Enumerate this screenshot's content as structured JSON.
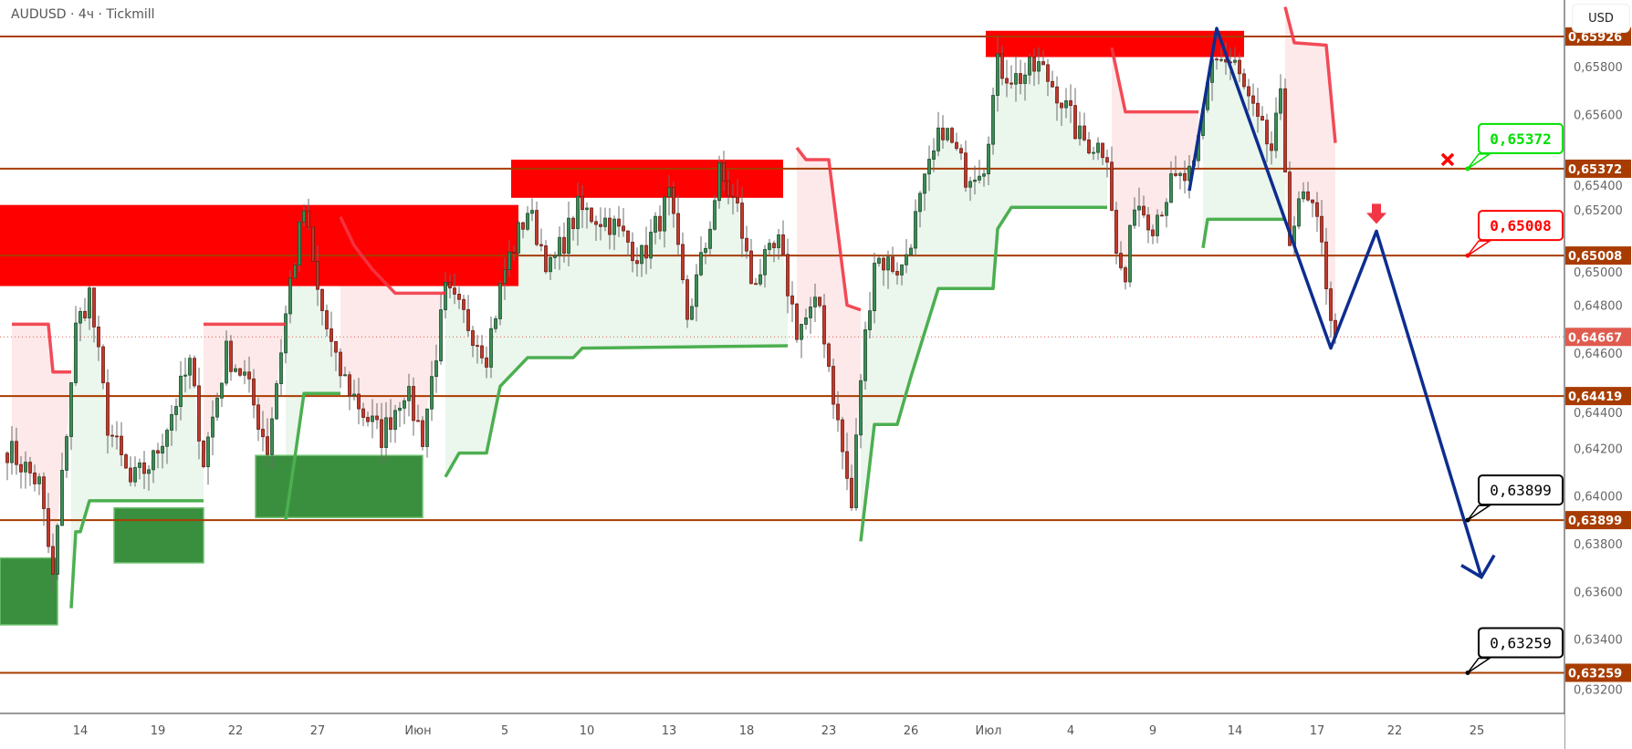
{
  "header": {
    "title": "AUDUSD · 4ч · Tickmill",
    "currency": "USD"
  },
  "chart_data": {
    "type": "candlestick",
    "symbol": "AUDUSD",
    "timeframe": "4ч",
    "broker": "Tickmill",
    "ylim": [
      0.6316,
      0.66
    ],
    "y_ticks": [
      "0,65800",
      "0,65600",
      "0,65400",
      "0,65200",
      "0,65000",
      "0,64800",
      "0,64600",
      "0,64400",
      "0,64200",
      "0,64000",
      "0,63800",
      "0,63600",
      "0,63400",
      "0,63200"
    ],
    "y_tick_values": [
      0.658,
      0.656,
      0.654,
      0.652,
      0.65,
      0.648,
      0.646,
      0.644,
      0.642,
      0.64,
      0.638,
      0.636,
      0.634,
      0.632
    ],
    "x_ticks": [
      {
        "label": "14",
        "bar": 16
      },
      {
        "label": "19",
        "bar": 33
      },
      {
        "label": "22",
        "bar": 50
      },
      {
        "label": "27",
        "bar": 68
      },
      {
        "label": "Июн",
        "bar": 90
      },
      {
        "label": "5",
        "bar": 109
      },
      {
        "label": "10",
        "bar": 127
      },
      {
        "label": "13",
        "bar": 145
      },
      {
        "label": "18",
        "bar": 162
      },
      {
        "label": "23",
        "bar": 180
      },
      {
        "label": "26",
        "bar": 198
      },
      {
        "label": "Июл",
        "bar": 215
      },
      {
        "label": "4",
        "bar": 233
      },
      {
        "label": "9",
        "bar": 251
      },
      {
        "label": "14",
        "bar": 269
      },
      {
        "label": "17",
        "bar": 287
      },
      {
        "label": "22",
        "bar": 304
      },
      {
        "label": "25",
        "bar": 322
      }
    ],
    "approx_close_path": [
      [
        0,
        0.642
      ],
      [
        7,
        0.6405
      ],
      [
        10,
        0.6365
      ],
      [
        15,
        0.647
      ],
      [
        18,
        0.6485
      ],
      [
        22,
        0.643
      ],
      [
        27,
        0.6405
      ],
      [
        32,
        0.6415
      ],
      [
        36,
        0.6435
      ],
      [
        40,
        0.6455
      ],
      [
        43,
        0.6415
      ],
      [
        48,
        0.646
      ],
      [
        52,
        0.645
      ],
      [
        57,
        0.642
      ],
      [
        62,
        0.649
      ],
      [
        65,
        0.652
      ],
      [
        68,
        0.6485
      ],
      [
        72,
        0.6455
      ],
      [
        78,
        0.6435
      ],
      [
        82,
        0.6425
      ],
      [
        87,
        0.6445
      ],
      [
        91,
        0.6425
      ],
      [
        96,
        0.6485
      ],
      [
        100,
        0.6475
      ],
      [
        105,
        0.646
      ],
      [
        109,
        0.6495
      ],
      [
        114,
        0.652
      ],
      [
        119,
        0.6495
      ],
      [
        125,
        0.652
      ],
      [
        132,
        0.6515
      ],
      [
        139,
        0.65
      ],
      [
        145,
        0.6525
      ],
      [
        149,
        0.6475
      ],
      [
        153,
        0.6505
      ],
      [
        156,
        0.6535
      ],
      [
        160,
        0.652
      ],
      [
        163,
        0.649
      ],
      [
        169,
        0.6505
      ],
      [
        173,
        0.647
      ],
      [
        178,
        0.648
      ],
      [
        182,
        0.643
      ],
      [
        185,
        0.6395
      ],
      [
        187,
        0.645
      ],
      [
        190,
        0.65
      ],
      [
        196,
        0.6495
      ],
      [
        201,
        0.653
      ],
      [
        205,
        0.6555
      ],
      [
        210,
        0.6535
      ],
      [
        214,
        0.654
      ],
      [
        217,
        0.658
      ],
      [
        221,
        0.6575
      ],
      [
        226,
        0.658
      ],
      [
        230,
        0.657
      ],
      [
        235,
        0.655
      ],
      [
        241,
        0.6545
      ],
      [
        243,
        0.65
      ],
      [
        245,
        0.649
      ],
      [
        247,
        0.6525
      ],
      [
        251,
        0.6515
      ],
      [
        255,
        0.653
      ],
      [
        260,
        0.6535
      ],
      [
        264,
        0.6585
      ],
      [
        269,
        0.658
      ],
      [
        274,
        0.6555
      ],
      [
        277,
        0.6545
      ],
      [
        279,
        0.6565
      ],
      [
        281,
        0.651
      ],
      [
        284,
        0.6525
      ],
      [
        288,
        0.651
      ],
      [
        290,
        0.647
      ],
      [
        291,
        0.64667
      ]
    ],
    "last_price": 0.64667,
    "levels": [
      0.65926,
      0.65372,
      0.65008,
      0.64419,
      0.63899,
      0.63259
    ],
    "level_labels": [
      "0,65926",
      "0,65372",
      "0,65008",
      "0,64419",
      "0,63899",
      "0,63259"
    ],
    "last_price_label": "0,64667",
    "supply_zones": [
      {
        "from_bar": 0,
        "to_bar": 112,
        "top": 0.6522,
        "bottom": 0.6488
      },
      {
        "from_bar": 112,
        "to_bar": 170,
        "top": 0.6541,
        "bottom": 0.6525
      },
      {
        "from_bar": 216,
        "to_bar": 271,
        "top": 0.6595,
        "bottom": 0.6584
      }
    ],
    "demand_zones": [
      {
        "from_bar": 0,
        "to_bar": 11,
        "top": 0.6374,
        "bottom": 0.6346
      },
      {
        "from_bar": 25,
        "to_bar": 43,
        "top": 0.6395,
        "bottom": 0.6372
      },
      {
        "from_bar": 56,
        "to_bar": 91,
        "top": 0.6417,
        "bottom": 0.6391
      }
    ],
    "supertrend_down": [
      [
        [
          1,
          0.6472
        ],
        [
          9,
          0.6472
        ],
        [
          10,
          0.6452
        ],
        [
          14,
          0.6452
        ]
      ],
      [
        [
          43,
          0.6472
        ],
        [
          61,
          0.6472
        ]
      ],
      [
        [
          73,
          0.6517
        ],
        [
          76,
          0.6505
        ],
        [
          80,
          0.6495
        ],
        [
          85,
          0.6485
        ],
        [
          96,
          0.6485
        ]
      ],
      [
        [
          173,
          0.6546
        ],
        [
          175,
          0.6541
        ],
        [
          180,
          0.6541
        ],
        [
          184,
          0.648
        ],
        [
          187,
          0.6478
        ]
      ],
      [
        [
          242,
          0.6588
        ],
        [
          245,
          0.6561
        ],
        [
          261,
          0.6561
        ]
      ],
      [
        [
          280,
          0.6605
        ],
        [
          282,
          0.659
        ],
        [
          289,
          0.6589
        ],
        [
          291,
          0.6548
        ]
      ]
    ],
    "supertrend_up": [
      [
        [
          14,
          0.6353
        ],
        [
          15,
          0.6385
        ],
        [
          16,
          0.6385
        ],
        [
          18,
          0.6398
        ],
        [
          43,
          0.6398
        ]
      ],
      [
        [
          61,
          0.639
        ],
        [
          63,
          0.6416
        ],
        [
          65,
          0.6443
        ],
        [
          73,
          0.6443
        ]
      ],
      [
        [
          96,
          0.6408
        ],
        [
          99,
          0.6418
        ],
        [
          105,
          0.6418
        ],
        [
          108,
          0.6446
        ],
        [
          114,
          0.6458
        ],
        [
          124,
          0.6458
        ],
        [
          126,
          0.6462
        ],
        [
          171,
          0.6463
        ]
      ],
      [
        [
          187,
          0.6381
        ],
        [
          190,
          0.643
        ],
        [
          195,
          0.643
        ],
        [
          198,
          0.645
        ],
        [
          204,
          0.6487
        ],
        [
          216,
          0.6487
        ],
        [
          217,
          0.6512
        ],
        [
          220,
          0.6521
        ],
        [
          241,
          0.6521
        ]
      ],
      [
        [
          262,
          0.6504
        ],
        [
          263,
          0.6516
        ],
        [
          280,
          0.6516
        ]
      ]
    ],
    "forecast_path": [
      [
        259,
        0.6528
      ],
      [
        265,
        0.6596
      ],
      [
        290,
        0.6462
      ],
      [
        300,
        0.6511
      ],
      [
        323,
        0.6366
      ]
    ],
    "callouts": [
      {
        "text": "0,65372",
        "price": 0.65372,
        "color": "#00e000",
        "marker": "cancelled"
      },
      {
        "text": "0,65008",
        "price": 0.65008,
        "color": "#ff0000"
      },
      {
        "text": "0,63899",
        "price": 0.63899,
        "color": "#000000"
      },
      {
        "text": "0,63259",
        "price": 0.63259,
        "color": "#000000"
      }
    ],
    "sell_arrow": {
      "bar": 300,
      "icon": "arrow-down-icon"
    },
    "colors": {
      "up": "#3c8c55",
      "down": "#c0392b",
      "level": "#a83c00",
      "supply": "#ff0000",
      "demand": "#3a8f3f",
      "st_down": "#f23645",
      "st_up": "#4caf50",
      "forecast": "#0d2d8f",
      "last": "#e05a4e"
    }
  }
}
